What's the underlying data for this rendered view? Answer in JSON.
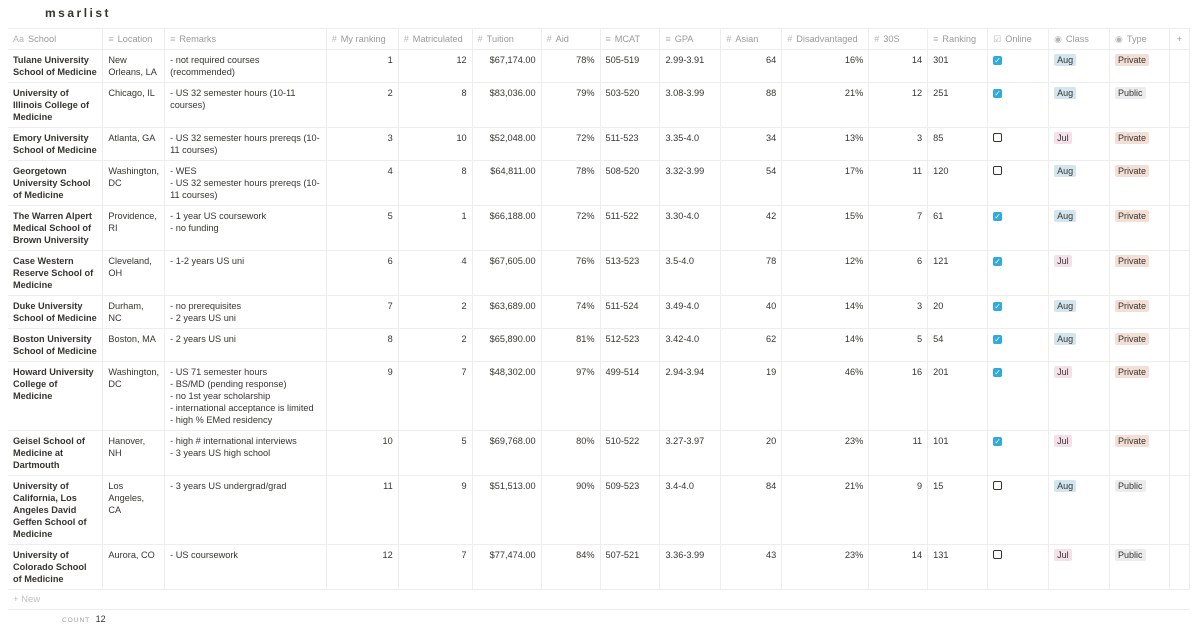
{
  "title": "msarlist",
  "columns": [
    {
      "label": "School",
      "icon": "Aa"
    },
    {
      "label": "Location",
      "icon": "≡"
    },
    {
      "label": "Remarks",
      "icon": "≡"
    },
    {
      "label": "My ranking",
      "icon": "#"
    },
    {
      "label": "Matriculated",
      "icon": "#"
    },
    {
      "label": "Tuition",
      "icon": "#"
    },
    {
      "label": "Aid",
      "icon": "#"
    },
    {
      "label": "MCAT",
      "icon": "≡"
    },
    {
      "label": "GPA",
      "icon": "≡"
    },
    {
      "label": "Asian",
      "icon": "#"
    },
    {
      "label": "Disadvantaged",
      "icon": "#"
    },
    {
      "label": "30S",
      "icon": "#"
    },
    {
      "label": "Ranking",
      "icon": "≡"
    },
    {
      "label": "Online",
      "icon": "☑"
    },
    {
      "label": "Class",
      "icon": "◉"
    },
    {
      "label": "Type",
      "icon": "◉"
    }
  ],
  "add_column": "+",
  "tag_colors": {
    "Aug": "#d3e5ef",
    "Jul": "#f5e0e9",
    "Private": "#f4dfd6",
    "Public": "#ebeced"
  },
  "rows": [
    {
      "school": "Tulane University School of Medicine",
      "location": "New Orleans, LA",
      "remarks": "- not required courses (recommended)",
      "my_ranking": "1",
      "matriculated": "12",
      "tuition": "$67,174.00",
      "aid": "78%",
      "mcat": "505-519",
      "gpa": "2.99-3.91",
      "asian": "64",
      "disadvantaged": "16%",
      "s30": "14",
      "ranking": "301",
      "online": true,
      "class": "Aug",
      "type": "Private"
    },
    {
      "school": "University of Illinois College of Medicine",
      "location": "Chicago, IL",
      "remarks": "- US 32 semester hours (10-11 courses)",
      "my_ranking": "2",
      "matriculated": "8",
      "tuition": "$83,036.00",
      "aid": "79%",
      "mcat": "503-520",
      "gpa": "3.08-3.99",
      "asian": "88",
      "disadvantaged": "21%",
      "s30": "12",
      "ranking": "251",
      "online": true,
      "class": "Aug",
      "type": "Public"
    },
    {
      "school": "Emory University School of Medicine",
      "location": "Atlanta, GA",
      "remarks": "- US 32 semester hours prereqs (10-11 courses)",
      "my_ranking": "3",
      "matriculated": "10",
      "tuition": "$52,048.00",
      "aid": "72%",
      "mcat": "511-523",
      "gpa": "3.35-4.0",
      "asian": "34",
      "disadvantaged": "13%",
      "s30": "3",
      "ranking": "85",
      "online": false,
      "class": "Jul",
      "type": "Private"
    },
    {
      "school": "Georgetown University School of Medicine",
      "location": "Washington, DC",
      "remarks": "- WES\n- US 32 semester hours prereqs (10-11 courses)",
      "my_ranking": "4",
      "matriculated": "8",
      "tuition": "$64,811.00",
      "aid": "78%",
      "mcat": "508-520",
      "gpa": "3.32-3.99",
      "asian": "54",
      "disadvantaged": "17%",
      "s30": "11",
      "ranking": "120",
      "online": false,
      "class": "Aug",
      "type": "Private"
    },
    {
      "school": "The Warren Alpert Medical School of Brown University",
      "location": "Providence, RI",
      "remarks": "- 1 year US coursework\n- no funding",
      "my_ranking": "5",
      "matriculated": "1",
      "tuition": "$66,188.00",
      "aid": "72%",
      "mcat": "511-522",
      "gpa": "3.30-4.0",
      "asian": "42",
      "disadvantaged": "15%",
      "s30": "7",
      "ranking": "61",
      "online": true,
      "class": "Aug",
      "type": "Private"
    },
    {
      "school": "Case Western Reserve School of Medicine",
      "location": "Cleveland, OH",
      "remarks": "- 1-2 years US uni",
      "my_ranking": "6",
      "matriculated": "4",
      "tuition": "$67,605.00",
      "aid": "76%",
      "mcat": "513-523",
      "gpa": "3.5-4.0",
      "asian": "78",
      "disadvantaged": "12%",
      "s30": "6",
      "ranking": "121",
      "online": true,
      "class": "Jul",
      "type": "Private"
    },
    {
      "school": "Duke University School of Medicine",
      "location": "Durham, NC",
      "remarks": "- no prerequisites\n- 2 years US uni",
      "my_ranking": "7",
      "matriculated": "2",
      "tuition": "$63,689.00",
      "aid": "74%",
      "mcat": "511-524",
      "gpa": "3.49-4.0",
      "asian": "40",
      "disadvantaged": "14%",
      "s30": "3",
      "ranking": "20",
      "online": true,
      "class": "Aug",
      "type": "Private"
    },
    {
      "school": "Boston University School of Medicine",
      "location": "Boston, MA",
      "remarks": "- 2 years US uni",
      "my_ranking": "8",
      "matriculated": "2",
      "tuition": "$65,890.00",
      "aid": "81%",
      "mcat": "512-523",
      "gpa": "3.42-4.0",
      "asian": "62",
      "disadvantaged": "14%",
      "s30": "5",
      "ranking": "54",
      "online": true,
      "class": "Aug",
      "type": "Private"
    },
    {
      "school": "Howard University College of Medicine",
      "location": "Washington, DC",
      "remarks": "- US 71 semester hours\n- BS/MD (pending response)\n- no 1st year scholarship\n- international acceptance is limited\n- high % EMed residency",
      "my_ranking": "9",
      "matriculated": "7",
      "tuition": "$48,302.00",
      "aid": "97%",
      "mcat": "499-514",
      "gpa": "2.94-3.94",
      "asian": "19",
      "disadvantaged": "46%",
      "s30": "16",
      "ranking": "201",
      "online": true,
      "class": "Jul",
      "type": "Private"
    },
    {
      "school": "Geisel School of Medicine at Dartmouth",
      "location": "Hanover, NH",
      "remarks": "- high # international interviews\n- 3 years US high school",
      "my_ranking": "10",
      "matriculated": "5",
      "tuition": "$69,768.00",
      "aid": "80%",
      "mcat": "510-522",
      "gpa": "3.27-3.97",
      "asian": "20",
      "disadvantaged": "23%",
      "s30": "11",
      "ranking": "101",
      "online": true,
      "class": "Jul",
      "type": "Private"
    },
    {
      "school": "University of California, Los Angeles David Geffen School of Medicine",
      "location": "Los Angeles, CA",
      "remarks": "- 3 years US undergrad/grad",
      "my_ranking": "11",
      "matriculated": "9",
      "tuition": "$51,513.00",
      "aid": "90%",
      "mcat": "509-523",
      "gpa": "3.4-4.0",
      "asian": "84",
      "disadvantaged": "21%",
      "s30": "9",
      "ranking": "15",
      "online": false,
      "class": "Aug",
      "type": "Public"
    },
    {
      "school": "University of Colorado School of Medicine",
      "location": "Aurora, CO",
      "remarks": "- US coursework",
      "my_ranking": "12",
      "matriculated": "7",
      "tuition": "$77,474.00",
      "aid": "84%",
      "mcat": "507-521",
      "gpa": "3.36-3.99",
      "asian": "43",
      "disadvantaged": "23%",
      "s30": "14",
      "ranking": "131",
      "online": false,
      "class": "Jul",
      "type": "Public"
    }
  ],
  "new_row": "+ New",
  "footer": {
    "count_label": "COUNT",
    "count_value": "12"
  }
}
